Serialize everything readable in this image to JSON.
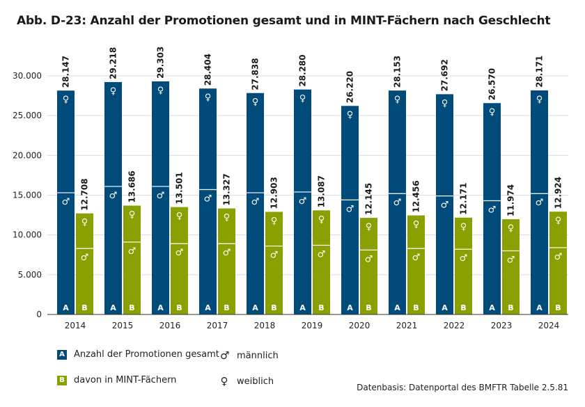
{
  "title": "Abb. D-23: Anzahl der Promotionen gesamt und in MINT-Fächern nach Geschlecht",
  "source": "Datenbasis: Datenportal des BMFTR Tabelle 2.5.81",
  "colors": {
    "A": "#004b7a",
    "B": "#8aa000",
    "grid": "#dcdcdc"
  },
  "legend": {
    "A_letter": "A",
    "A_label": "Anzahl der Promotionen gesamt",
    "B_letter": "B",
    "B_label": "davon in MINT-Fächern",
    "male_symbol": "♂",
    "male_label": "männlich",
    "female_symbol": "♀",
    "female_label": "weiblich"
  },
  "chart_data": {
    "type": "bar",
    "title": "Abb. D-23: Anzahl der Promotionen gesamt und in MINT-Fächern nach Geschlecht",
    "categories": [
      "2014",
      "2015",
      "2016",
      "2017",
      "2018",
      "2019",
      "2020",
      "2021",
      "2022",
      "2023",
      "2024"
    ],
    "ylim": [
      0,
      30000
    ],
    "yticks": [
      0,
      5000,
      10000,
      15000,
      20000,
      25000,
      30000
    ],
    "ytick_labels": [
      "0",
      "5.000",
      "10.000",
      "15.000",
      "20.000",
      "25.000",
      "30.000"
    ],
    "grid": true,
    "stacked": true,
    "series": [
      {
        "letter": "A",
        "name": "Anzahl der Promotionen gesamt",
        "total": [
          28147,
          29218,
          29303,
          28404,
          27838,
          28280,
          26220,
          28153,
          27692,
          26570,
          28171
        ],
        "total_labels": [
          "28.147",
          "29.218",
          "29.303",
          "28.404",
          "27.838",
          "28.280",
          "26.220",
          "28.153",
          "27.692",
          "26.570",
          "28.171"
        ],
        "male": [
          15300,
          16100,
          16100,
          15700,
          15300,
          15400,
          14400,
          15200,
          14900,
          14300,
          15200
        ]
      },
      {
        "letter": "B",
        "name": "davon in MINT-Fächern",
        "total": [
          12708,
          13686,
          13501,
          13327,
          12903,
          13087,
          12145,
          12456,
          12171,
          11974,
          12924
        ],
        "total_labels": [
          "12.708",
          "13.686",
          "13.501",
          "13.327",
          "12.903",
          "13.087",
          "12.145",
          "12.456",
          "12.171",
          "11.974",
          "12.924"
        ],
        "male": [
          8300,
          9100,
          8900,
          8900,
          8600,
          8700,
          8100,
          8300,
          8200,
          8000,
          8400
        ]
      }
    ]
  }
}
